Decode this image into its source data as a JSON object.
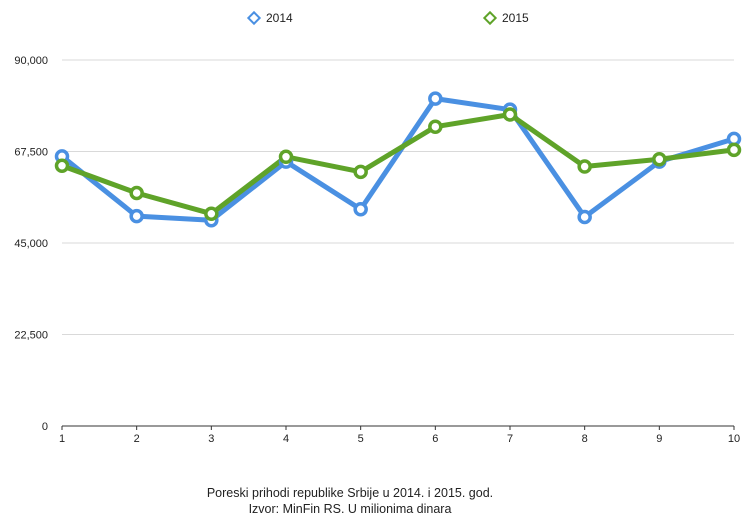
{
  "chart_data": {
    "type": "line",
    "title": "",
    "xlabel": "",
    "ylabel": "",
    "x": [
      "1",
      "2",
      "3",
      "4",
      "5",
      "6",
      "7",
      "8",
      "9",
      "10"
    ],
    "ylim": [
      0,
      90000
    ],
    "yticks": [
      0,
      22500,
      45000,
      67500,
      90000
    ],
    "ytick_labels": [
      "0",
      "22,500",
      "45,000",
      "67,500",
      "90,000"
    ],
    "grid": true,
    "legend_position": "top-center",
    "series": [
      {
        "name": "2014",
        "color": "#4a90e2",
        "values": [
          66300,
          51600,
          50600,
          65000,
          53300,
          80500,
          77800,
          51400,
          65000,
          70600
        ]
      },
      {
        "name": "2015",
        "color": "#5fa329",
        "values": [
          64000,
          57300,
          52200,
          66200,
          62500,
          73600,
          76600,
          63800,
          65600,
          67900
        ]
      }
    ]
  },
  "caption": {
    "line1": "Poreski prihodi republike Srbije u 2014. i 2015. god.",
    "line2": "Izvor: MinFin RS. U milionima dinara"
  }
}
